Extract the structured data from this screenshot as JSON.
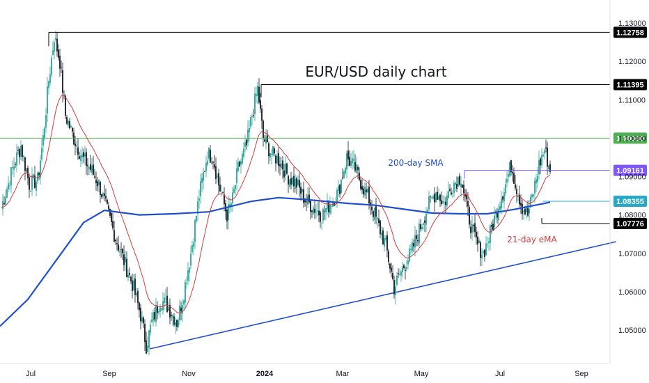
{
  "chart_data": {
    "type": "candlestick",
    "title": "EUR/USD daily chart",
    "y_axis": {
      "ylim": [
        1.0435,
        1.1335
      ],
      "ticks": [
        "1.13000",
        "1.12000",
        "1.11000",
        "1.10000",
        "1.09000",
        "1.08000",
        "1.07000",
        "1.06000",
        "1.05000"
      ],
      "tick_values": [
        1.13,
        1.12,
        1.11,
        1.1,
        1.09,
        1.08,
        1.07,
        1.06,
        1.05
      ],
      "position": "right"
    },
    "x_axis": {
      "ticks": [
        "Jul",
        "Sep",
        "Nov",
        "2024",
        "Mar",
        "May",
        "Jul",
        "Sep"
      ],
      "bold_ticks": [
        "2024"
      ]
    },
    "levels": [
      {
        "label": "1.12758",
        "value": 1.12758,
        "color": "#000000",
        "line_color": "#000000"
      },
      {
        "label": "1.11395",
        "value": 1.11395,
        "color": "#000000",
        "line_color": "#000000"
      },
      {
        "label": "1.10000",
        "value": 1.1,
        "color": "#4caf50",
        "line_color": "#4caf50"
      },
      {
        "label": "1.09161",
        "value": 1.09161,
        "color": "#7e57ff",
        "line_color": "#7e57ff"
      },
      {
        "label": "1.08355",
        "value": 1.08355,
        "color": "#26a9c9",
        "line_color": "#26a9c9"
      },
      {
        "label": "1.07776",
        "value": 1.07776,
        "color": "#000000",
        "line_color": "#000000"
      }
    ],
    "annotations": [
      {
        "text": "200-day SMA",
        "color": "#1f4fd1"
      },
      {
        "text": "21-day eMA",
        "color": "#d43b3b"
      }
    ],
    "series": [
      {
        "name": "200-day SMA",
        "color": "#1f4fd1"
      },
      {
        "name": "21-day eMA",
        "color": "#d43b3b"
      }
    ],
    "trendline": {
      "from": [
        1.0455,
        1.0455
      ],
      "to": [
        1.0735,
        1.0735
      ],
      "color": "#1f4fd1"
    },
    "colors": {
      "up": "#26a69a",
      "down": "#131722"
    }
  }
}
